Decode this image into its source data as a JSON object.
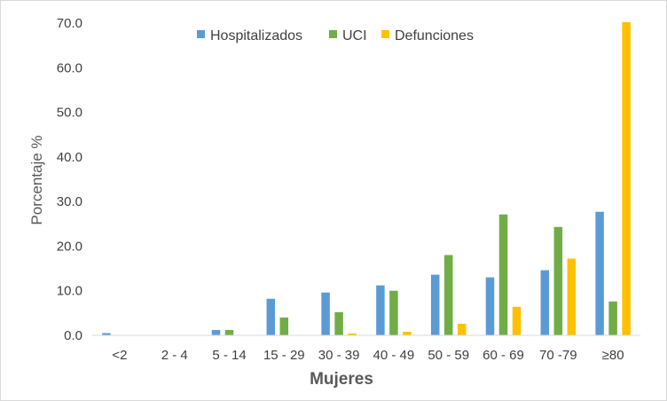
{
  "chart_data": {
    "type": "bar",
    "xlabel": "Mujeres",
    "ylabel": "Porcentaje %",
    "ylim": [
      0,
      70
    ],
    "yticks": [
      "0.0",
      "10.0",
      "20.0",
      "30.0",
      "40.0",
      "50.0",
      "60.0",
      "70.0"
    ],
    "grid": false,
    "legend_position": "top",
    "categories": [
      "<2",
      "2 - 4",
      "5 - 14",
      "15 - 29",
      "30 - 39",
      "40 - 49",
      "50 - 59",
      "60 - 69",
      "70 -79",
      "≥80"
    ],
    "series": [
      {
        "name": "Hospitalizados",
        "color": "#5b9bd5",
        "values": [
          0.5,
          0.0,
          1.2,
          8.2,
          9.6,
          11.2,
          13.6,
          13.0,
          14.6,
          27.7
        ]
      },
      {
        "name": "UCI",
        "color": "#70ad47",
        "values": [
          0.0,
          0.0,
          1.2,
          4.0,
          5.2,
          10.0,
          18.0,
          27.1,
          24.3,
          7.6
        ]
      },
      {
        "name": "Defunciones",
        "color": "#ffc000",
        "values": [
          0.0,
          0.0,
          0.0,
          0.1,
          0.4,
          0.8,
          2.6,
          6.4,
          17.2,
          70.2
        ]
      }
    ]
  }
}
